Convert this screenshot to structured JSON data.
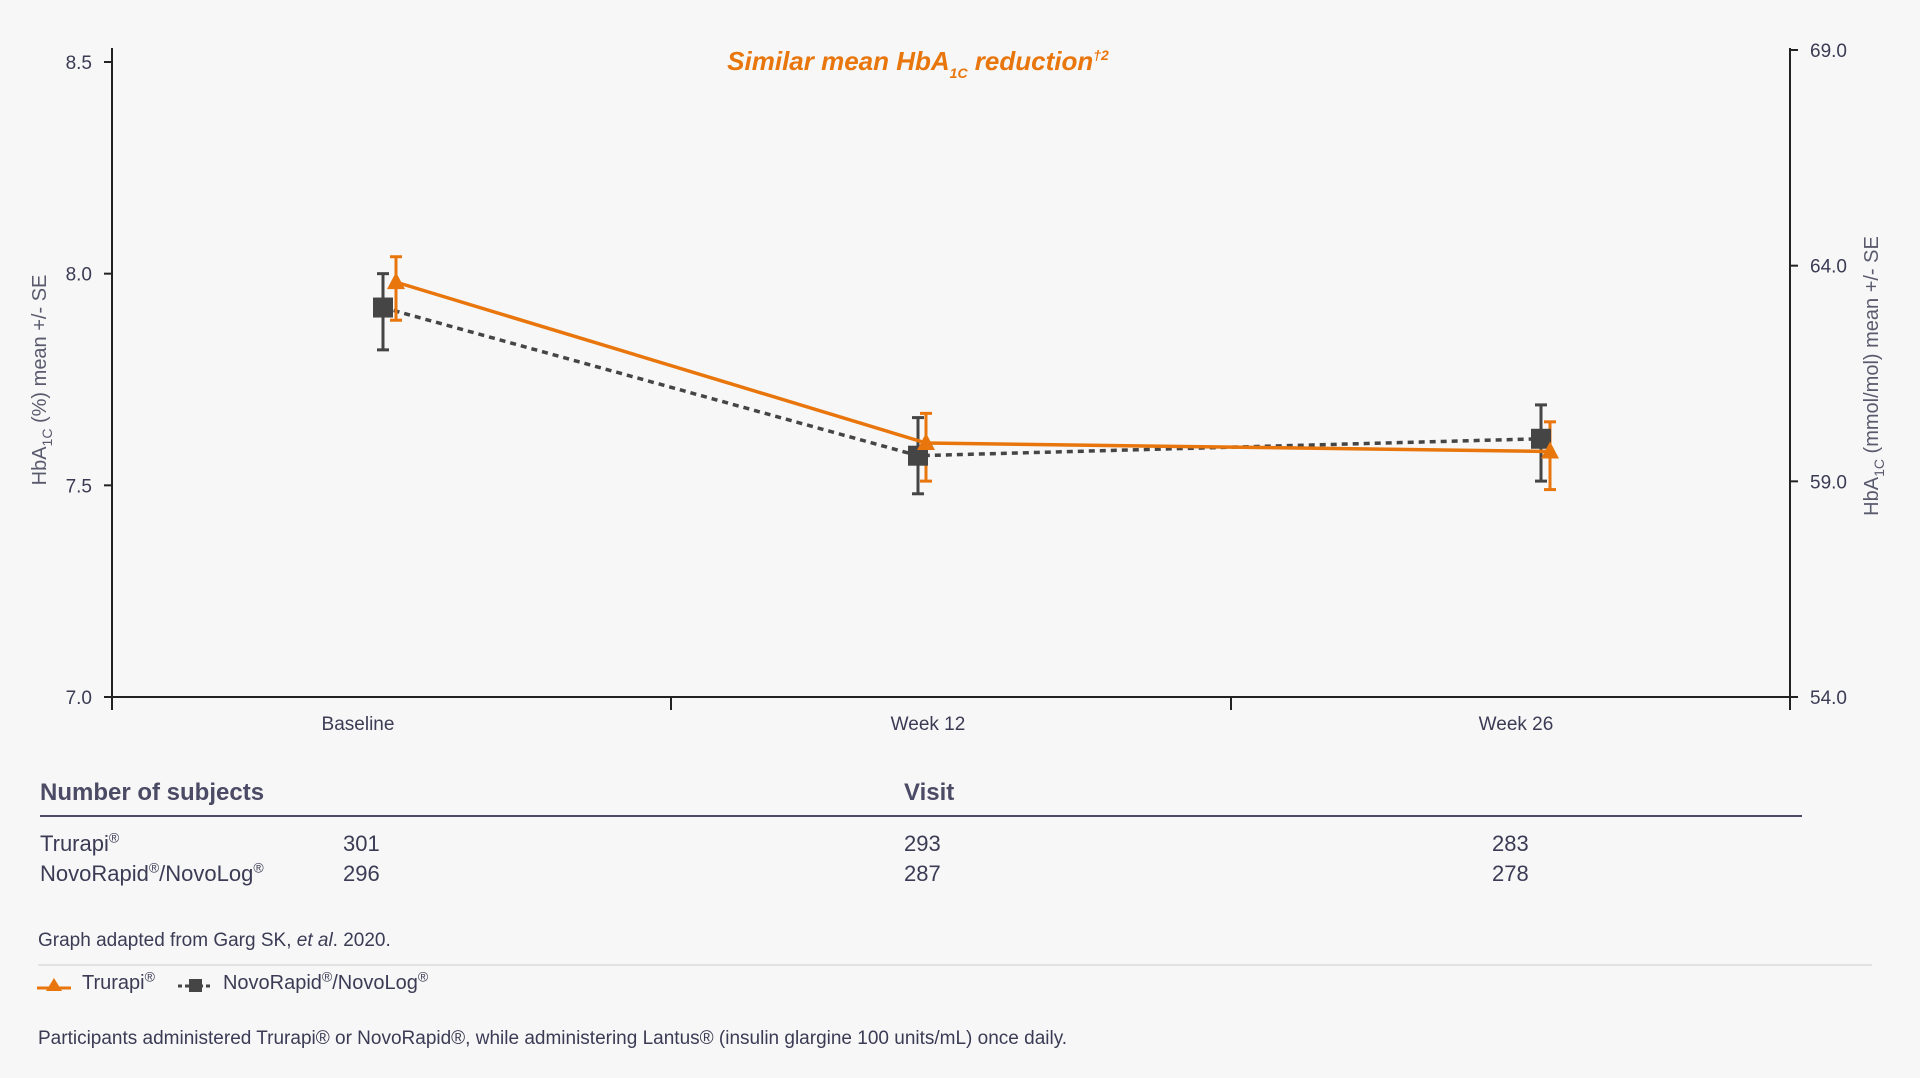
{
  "chart_data": {
    "type": "line",
    "title": "Similar mean HbA",
    "title_subscript": "1C",
    "title_suffix": " reduction",
    "title_superscript": "†2",
    "categories": [
      "Baseline",
      "Week 12",
      "Week 26"
    ],
    "ylabel_left_prefix": "HbA",
    "ylabel_left_sub": "1C",
    "ylabel_left_suffix": " (%) mean +/- SE",
    "ylabel_right_prefix": "HbA",
    "ylabel_right_sub": "1C",
    "ylabel_right_suffix": " (mmol/mol) mean +/- SE",
    "ylim_left": [
      7.0,
      8.5
    ],
    "yticks_left": [
      "7.0",
      "7.5",
      "8.0",
      "8.5"
    ],
    "ylim_right": [
      54.0,
      69.0
    ],
    "yticks_right": [
      "54.0",
      "59.0",
      "64.0",
      "69.0"
    ],
    "series": [
      {
        "name": "Trurapi®",
        "color": "#e8760c",
        "marker": "triangle",
        "line": "solid",
        "values": [
          7.98,
          7.6,
          7.58
        ],
        "se_low": [
          7.89,
          7.51,
          7.49
        ],
        "se_high": [
          8.04,
          7.67,
          7.65
        ]
      },
      {
        "name": "NovoRapid®/NovoLog®",
        "color": "#454545",
        "marker": "square",
        "line": "dashed",
        "values": [
          7.92,
          7.57,
          7.61
        ],
        "se_low": [
          7.82,
          7.48,
          7.51
        ],
        "se_high": [
          8.0,
          7.66,
          7.69
        ]
      }
    ]
  },
  "subjects_table": {
    "header_label": "Number of subjects",
    "header_visit": "Visit",
    "rows": [
      {
        "name": "Trurapi",
        "mark": "®",
        "mark2": "",
        "suffix": "",
        "values": [
          "301",
          "293",
          "283"
        ]
      },
      {
        "name": "NovoRapid",
        "mark": "®",
        "middle": "/NovoLog",
        "mark2": "®",
        "values": [
          "296",
          "287",
          "278"
        ]
      }
    ]
  },
  "source": {
    "prefix": "Graph adapted from Garg SK, ",
    "italic": "et al",
    "suffix": ". 2020."
  },
  "legend": {
    "trurapi_label": "Trurapi",
    "trurapi_mark": "®",
    "novo_label_a": "NovoRapid",
    "novo_mark_a": "®",
    "novo_label_b": "/NovoLog",
    "novo_mark_b": "®"
  },
  "footnote": "Participants administered Trurapi® or NovoRapid®, while administering Lantus® (insulin glargine 100 units/mL) once daily."
}
